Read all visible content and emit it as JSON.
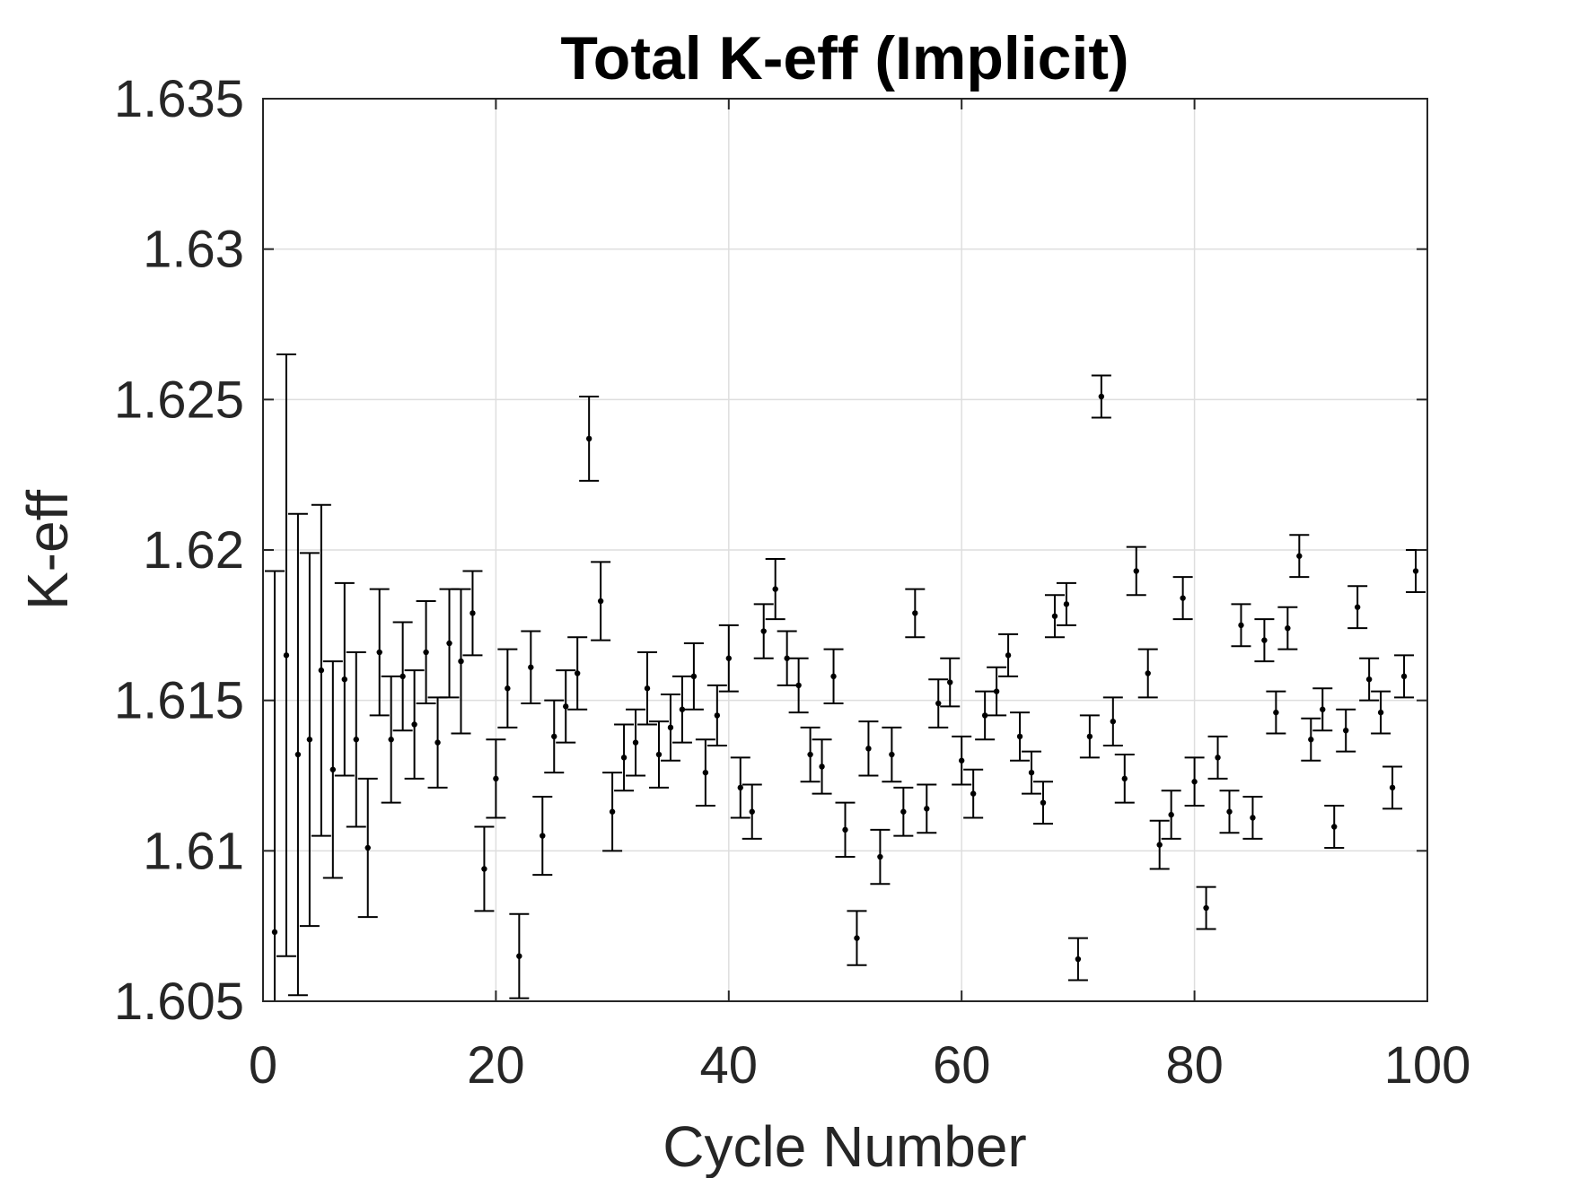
{
  "chart_data": {
    "type": "scatter",
    "title": "Total K-eff (Implicit)",
    "xlabel": "Cycle Number",
    "ylabel": "K-eff",
    "xlim": [
      0,
      100
    ],
    "ylim": [
      1.605,
      1.635
    ],
    "xticks": [
      0,
      20,
      40,
      60,
      80,
      100
    ],
    "xtick_labels": [
      "0",
      "20",
      "40",
      "60",
      "80",
      "100"
    ],
    "yticks": [
      1.605,
      1.61,
      1.615,
      1.62,
      1.625,
      1.63,
      1.635
    ],
    "ytick_labels": [
      "1.605",
      "1.61",
      "1.615",
      "1.62",
      "1.625",
      "1.63",
      "1.635"
    ],
    "grid": true,
    "legend": false,
    "marker_color": "#000000",
    "series": [
      {
        "x": [
          1,
          2,
          3,
          4,
          5,
          6,
          7,
          8,
          9,
          10,
          11,
          12,
          13,
          14,
          15,
          16,
          17,
          18,
          19,
          20,
          21,
          22,
          23,
          24,
          25,
          26,
          27,
          28,
          29,
          30,
          31,
          32,
          33,
          34,
          35,
          36,
          37,
          38,
          39,
          40,
          41,
          42,
          43,
          44,
          45,
          46,
          47,
          48,
          49,
          50,
          51,
          52,
          53,
          54,
          55,
          56,
          57,
          58,
          59,
          60,
          61,
          62,
          63,
          64,
          65,
          66,
          67,
          68,
          69,
          70,
          71,
          72,
          73,
          74,
          75,
          76,
          77,
          78,
          79,
          80,
          81,
          82,
          83,
          84,
          85,
          86,
          87,
          88,
          89,
          90,
          91,
          92,
          93,
          94,
          95,
          96,
          97,
          98,
          99
        ],
        "y": [
          1.6073,
          1.6165,
          1.6132,
          1.6137,
          1.616,
          1.6127,
          1.6157,
          1.6137,
          1.6101,
          1.6166,
          1.6137,
          1.6158,
          1.6142,
          1.6166,
          1.6136,
          1.6169,
          1.6163,
          1.6179,
          1.6094,
          1.6124,
          1.6154,
          1.6065,
          1.6161,
          1.6105,
          1.6138,
          1.6148,
          1.6159,
          1.6237,
          1.6183,
          1.6113,
          1.6131,
          1.6136,
          1.6154,
          1.6132,
          1.6141,
          1.6147,
          1.6158,
          1.6126,
          1.6145,
          1.6164,
          1.6121,
          1.6113,
          1.6173,
          1.6187,
          1.6164,
          1.6155,
          1.6132,
          1.6128,
          1.6158,
          1.6107,
          1.6071,
          1.6134,
          1.6098,
          1.6132,
          1.6113,
          1.6179,
          1.6114,
          1.6149,
          1.6156,
          1.613,
          1.6119,
          1.6145,
          1.6153,
          1.6165,
          1.6138,
          1.6126,
          1.6116,
          1.6178,
          1.6182,
          1.6064,
          1.6138,
          1.6251,
          1.6143,
          1.6124,
          1.6193,
          1.6159,
          1.6102,
          1.6112,
          1.6184,
          1.6123,
          1.6081,
          1.6131,
          1.6113,
          1.6175,
          1.6111,
          1.617,
          1.6146,
          1.6174,
          1.6198,
          1.6137,
          1.6147,
          1.6108,
          1.614,
          1.6181,
          1.6157,
          1.6146,
          1.6121,
          1.6158,
          1.6193
        ],
        "err": [
          0.012,
          0.01,
          0.008,
          0.0062,
          0.0055,
          0.0036,
          0.0032,
          0.0029,
          0.0023,
          0.0021,
          0.0021,
          0.0018,
          0.0018,
          0.0017,
          0.0015,
          0.0018,
          0.0024,
          0.0014,
          0.0014,
          0.0013,
          0.0013,
          0.0014,
          0.0012,
          0.0013,
          0.0012,
          0.0012,
          0.0012,
          0.0014,
          0.0013,
          0.0013,
          0.0011,
          0.0011,
          0.0012,
          0.0011,
          0.0011,
          0.0011,
          0.0011,
          0.0011,
          0.001,
          0.0011,
          0.001,
          0.0009,
          0.0009,
          0.001,
          0.0009,
          0.0009,
          0.0009,
          0.0009,
          0.0009,
          0.0009,
          0.0009,
          0.0009,
          0.0009,
          0.0009,
          0.0008,
          0.0008,
          0.0008,
          0.0008,
          0.0008,
          0.0008,
          0.0008,
          0.0008,
          0.0008,
          0.0007,
          0.0008,
          0.0007,
          0.0007,
          0.0007,
          0.0007,
          0.0007,
          0.0007,
          0.0007,
          0.0008,
          0.0008,
          0.0008,
          0.0008,
          0.0008,
          0.0008,
          0.0007,
          0.0008,
          0.0007,
          0.0007,
          0.0007,
          0.0007,
          0.0007,
          0.0007,
          0.0007,
          0.0007,
          0.0007,
          0.0007,
          0.0007,
          0.0007,
          0.0007,
          0.0007,
          0.0007,
          0.0007,
          0.0007,
          0.0007,
          0.0007
        ]
      }
    ]
  }
}
